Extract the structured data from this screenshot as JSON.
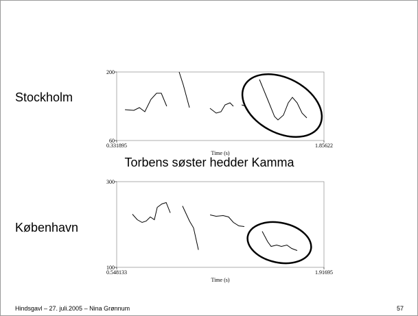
{
  "chart_data": [
    {
      "type": "line",
      "label": "Stockholm",
      "xlabel": "Time (s)",
      "xlim": [
        0.331895,
        1.85622
      ],
      "xticks": [
        0.331895,
        1.85622
      ],
      "ylim": [
        60,
        200
      ],
      "yticks": [
        60,
        200
      ],
      "color": "#000000",
      "x": [
        0.393,
        0.458,
        0.499,
        0.539,
        0.584,
        0.625,
        0.66,
        0.7,
        null,
        0.791,
        0.822,
        0.867,
        null,
        1.018,
        1.064,
        1.099,
        1.129,
        1.165,
        1.19,
        null,
        1.251,
        1.281,
        1.326,
        null,
        1.382,
        1.442,
        1.493,
        1.518,
        1.558,
        1.594,
        1.624,
        1.659,
        1.695,
        1.73
      ],
      "values": [
        123,
        121.6,
        127.2,
        118.8,
        144,
        156.6,
        156.6,
        130,
        null,
        200,
        173.4,
        127.2,
        null,
        125.8,
        116,
        118.8,
        132.8,
        137,
        130,
        null,
        132.8,
        130,
        109,
        null,
        184.6,
        144,
        109,
        102,
        111.8,
        137,
        148.2,
        137,
        116,
        106.2
      ]
    },
    {
      "type": "line",
      "label": "København",
      "xlabel": "Time (s)",
      "xlim": [
        0.548133,
        1.91695
      ],
      "xticks": [
        0.548133,
        1.91695
      ],
      "ylim": [
        100,
        300
      ],
      "yticks": [
        100,
        300
      ],
      "color": "#000000",
      "x": [
        0.652,
        0.684,
        0.716,
        0.743,
        0.77,
        0.797,
        0.816,
        0.847,
        0.875,
        0.902,
        null,
        0.983,
        1.029,
        1.056,
        1.088,
        null,
        1.165,
        1.205,
        1.251,
        1.287,
        1.319,
        1.355,
        1.391,
        null,
        1.509,
        1.545,
        1.568,
        1.604,
        1.636,
        1.672,
        1.704,
        1.74
      ],
      "values": [
        224,
        211.2,
        204.8,
        208,
        217.6,
        211.2,
        240,
        248,
        251.2,
        227.2,
        null,
        243.2,
        208,
        192,
        140.8,
        null,
        222.4,
        219.2,
        220.8,
        217.6,
        204.8,
        196.8,
        195.2,
        null,
        184,
        160,
        148.8,
        152,
        148.8,
        152,
        144,
        139.2
      ]
    }
  ],
  "slide": {
    "sentence": "Torbens søster hedder Kamma",
    "footer": "Hindsgavl – 27. juli.2005 – Nina Grønnum",
    "page": "57"
  }
}
